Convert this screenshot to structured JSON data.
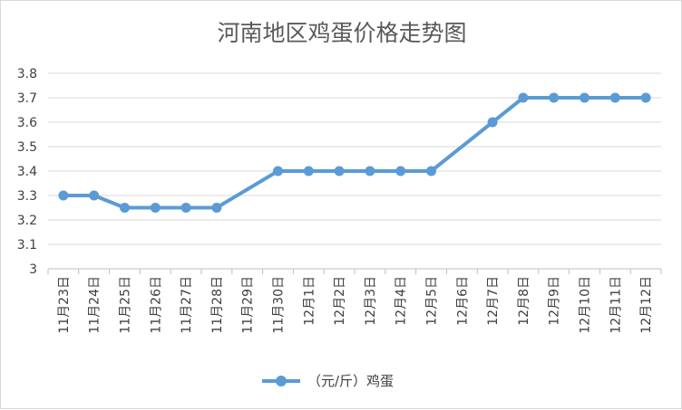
{
  "chart_data": {
    "type": "line",
    "title": "河南地区鸡蛋价格走势图",
    "xlabel": "",
    "ylabel": "",
    "categories": [
      "11月23日",
      "11月24日",
      "11月25日",
      "11月26日",
      "11月27日",
      "11月28日",
      "11月29日",
      "11月30日",
      "12月1日",
      "12月2日",
      "12月3日",
      "12月4日",
      "12月5日",
      "12月6日",
      "12月7日",
      "12月8日",
      "12月9日",
      "12月10日",
      "12月11日",
      "12月12日"
    ],
    "series": [
      {
        "name": "（元/斤）鸡蛋",
        "color": "#5b9bd5",
        "values": [
          3.3,
          3.3,
          3.25,
          3.25,
          3.25,
          3.25,
          null,
          3.4,
          3.4,
          3.4,
          3.4,
          3.4,
          3.4,
          null,
          3.6,
          3.7,
          3.7,
          3.7,
          3.7,
          3.7
        ]
      }
    ],
    "ylim": [
      3,
      3.8
    ],
    "yticks": [
      "3",
      "3.1",
      "3.2",
      "3.3",
      "3.4",
      "3.5",
      "3.6",
      "3.7",
      "3.8"
    ],
    "grid": true,
    "legend": "bottom",
    "gap_handling": "connect"
  }
}
